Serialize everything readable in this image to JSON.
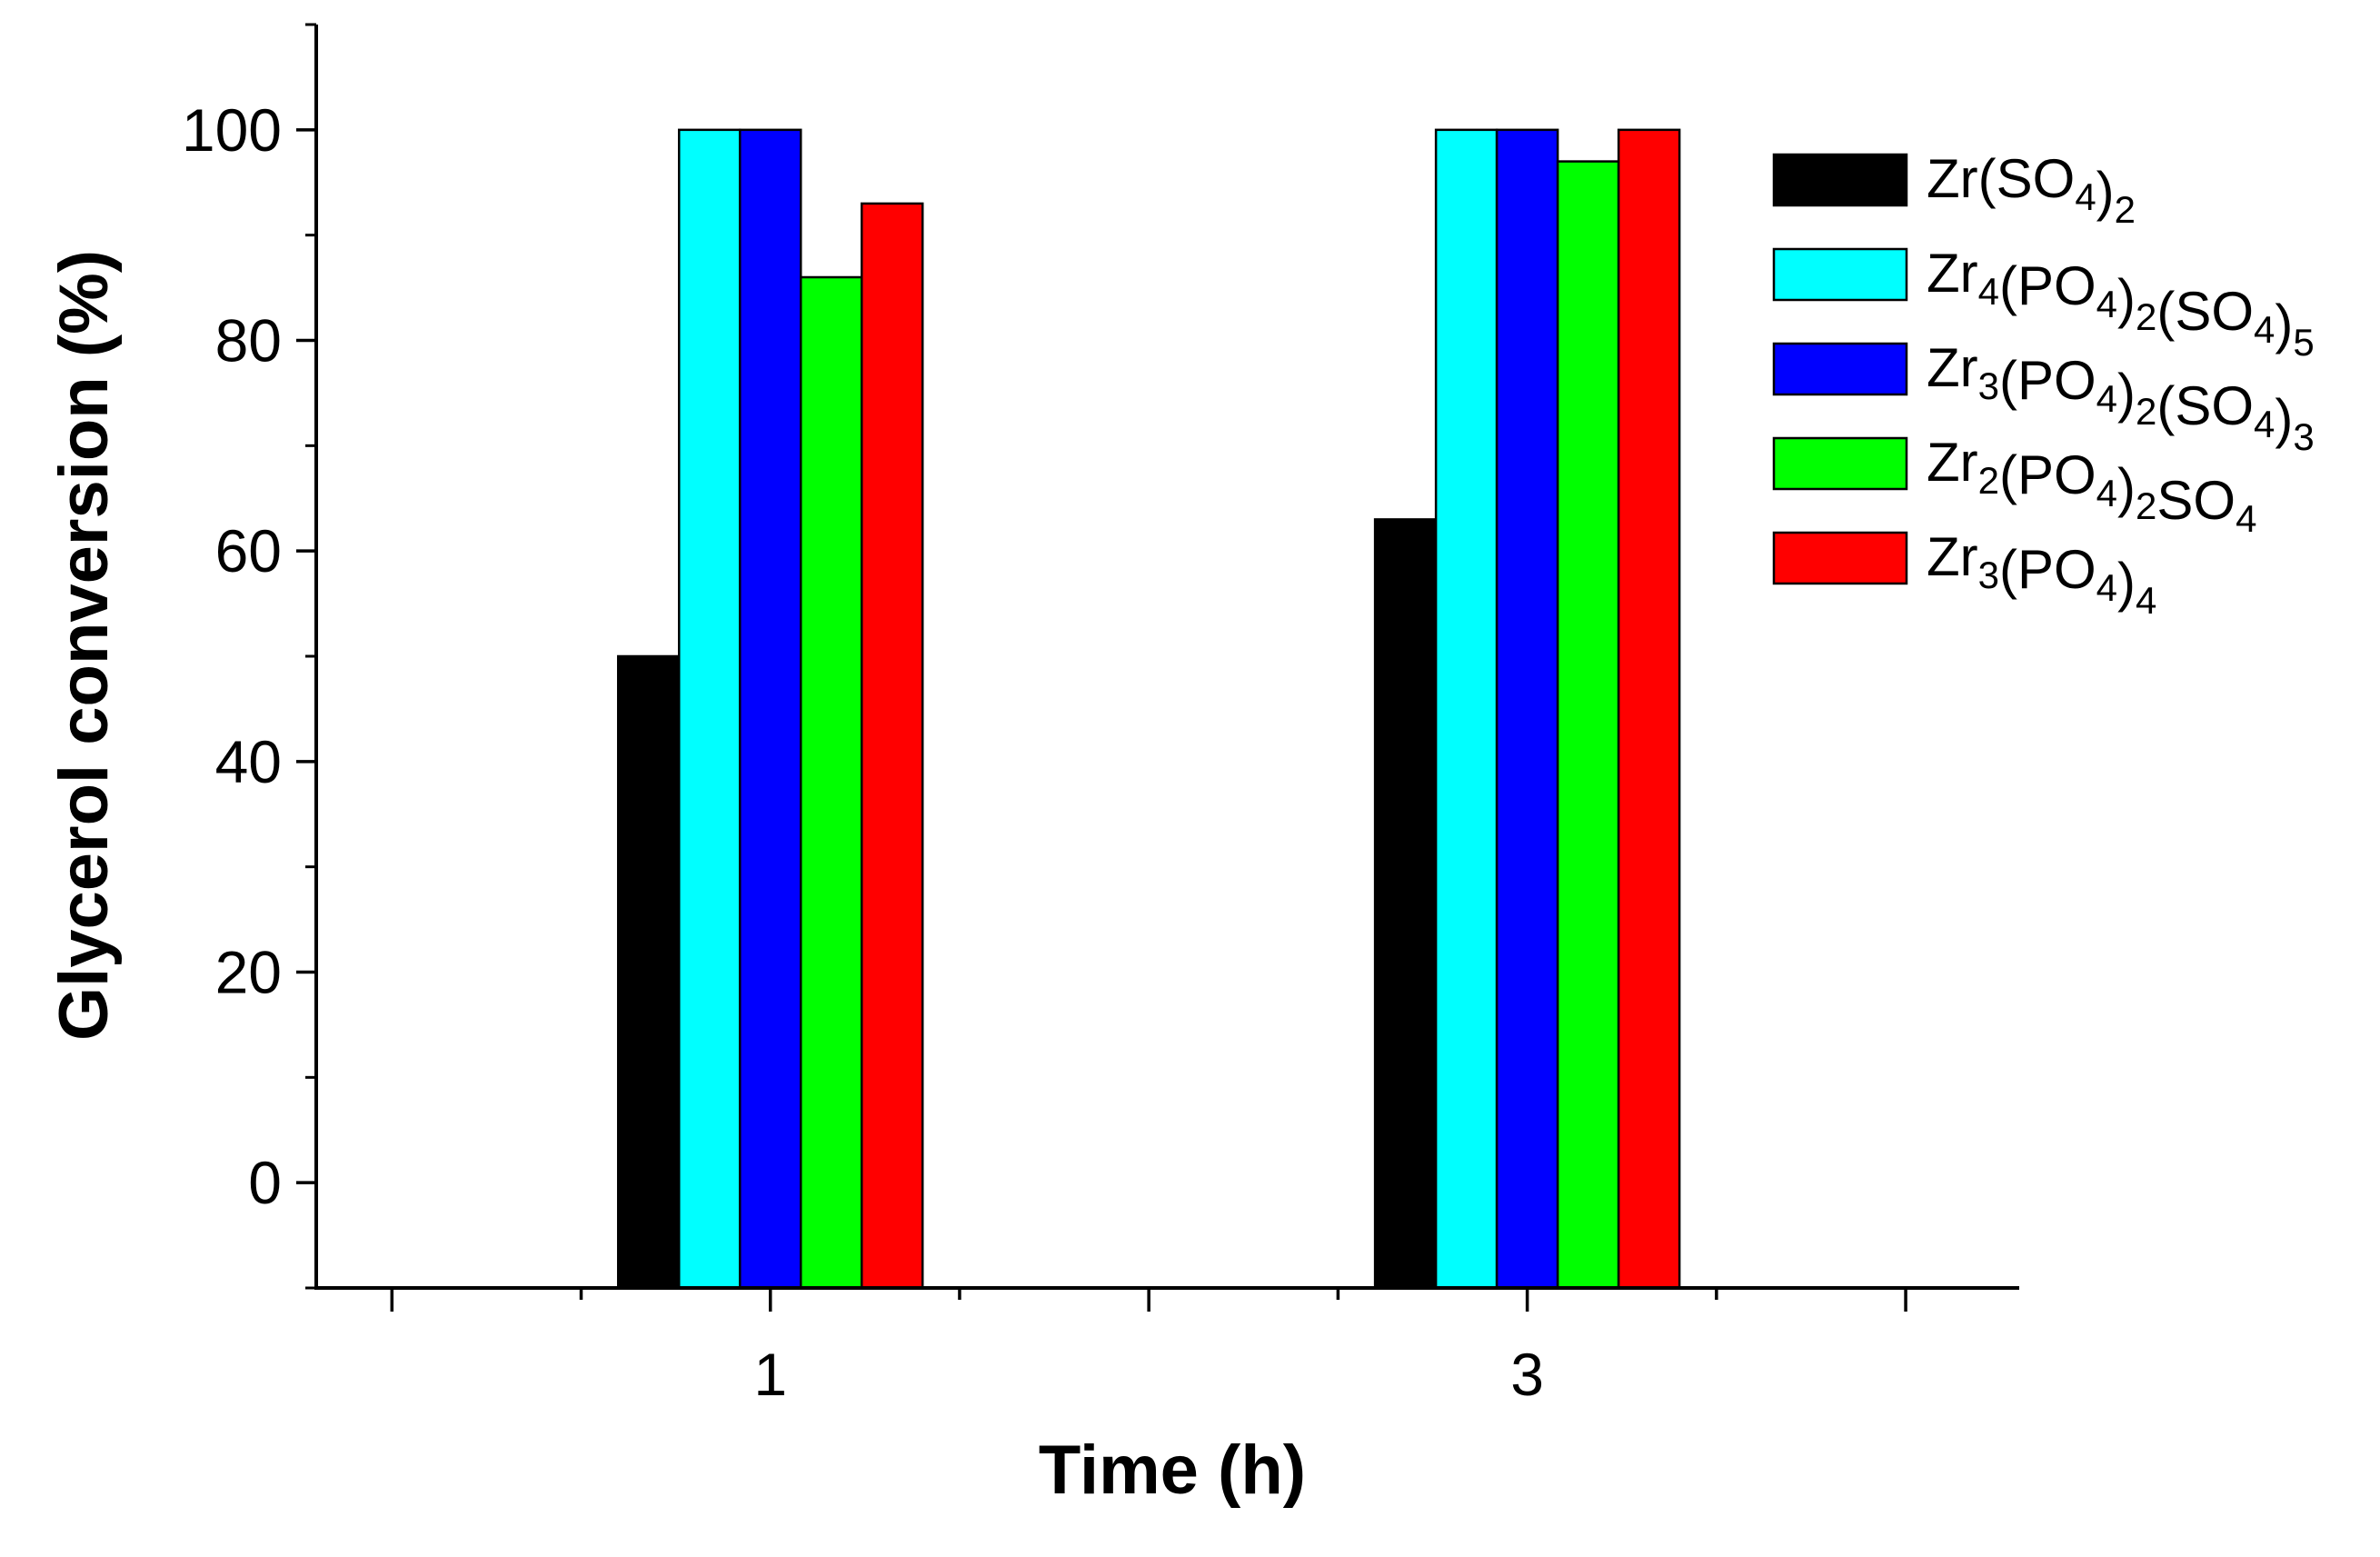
{
  "chart_data": {
    "type": "bar",
    "title": "",
    "xlabel": "Time (h)",
    "ylabel": "Glycerol conversion (%)",
    "categories": [
      "1",
      "3"
    ],
    "ylim": [
      -10,
      110
    ],
    "yticks": [
      "0",
      "20",
      "40",
      "60",
      "80",
      "100"
    ],
    "grid": false,
    "legend_position": "top-right",
    "series": [
      {
        "name": "Zr(SO4)2",
        "color": "#000000",
        "values": [
          50,
          63
        ]
      },
      {
        "name": "Zr4(PO4)2(SO4)5",
        "color": "#00ffff",
        "values": [
          100,
          100
        ]
      },
      {
        "name": "Zr3(PO4)2(SO4)3",
        "color": "#0000ff",
        "values": [
          100,
          100
        ]
      },
      {
        "name": "Zr2(PO4)2SO4",
        "color": "#00ff00",
        "values": [
          86,
          97
        ]
      },
      {
        "name": "Zr3(PO4)4",
        "color": "#ff0000",
        "values": [
          93,
          100
        ]
      }
    ]
  },
  "legend": {
    "items": [
      {
        "parts": [
          {
            "t": "Zr(SO"
          },
          {
            "t": "4",
            "sub": true
          },
          {
            "t": ")"
          },
          {
            "t": "2",
            "sub": true
          }
        ]
      },
      {
        "parts": [
          {
            "t": "Zr"
          },
          {
            "t": "4",
            "sub": true
          },
          {
            "t": "(PO"
          },
          {
            "t": "4",
            "sub": true
          },
          {
            "t": ")"
          },
          {
            "t": "2",
            "sub": true
          },
          {
            "t": "(SO"
          },
          {
            "t": "4",
            "sub": true
          },
          {
            "t": ")"
          },
          {
            "t": "5",
            "sub": true
          }
        ]
      },
      {
        "parts": [
          {
            "t": "Zr"
          },
          {
            "t": "3",
            "sub": true
          },
          {
            "t": "(PO"
          },
          {
            "t": "4",
            "sub": true
          },
          {
            "t": ")"
          },
          {
            "t": "2",
            "sub": true
          },
          {
            "t": "(SO"
          },
          {
            "t": "4",
            "sub": true
          },
          {
            "t": ")"
          },
          {
            "t": "3",
            "sub": true
          }
        ]
      },
      {
        "parts": [
          {
            "t": "Zr"
          },
          {
            "t": "2",
            "sub": true
          },
          {
            "t": "(PO"
          },
          {
            "t": "4",
            "sub": true
          },
          {
            "t": ")"
          },
          {
            "t": "2",
            "sub": true
          },
          {
            "t": "SO"
          },
          {
            "t": "4",
            "sub": true
          }
        ]
      },
      {
        "parts": [
          {
            "t": "Zr"
          },
          {
            "t": "3",
            "sub": true
          },
          {
            "t": "(PO"
          },
          {
            "t": "4",
            "sub": true
          },
          {
            "t": ")"
          },
          {
            "t": "4",
            "sub": true
          }
        ]
      }
    ]
  }
}
